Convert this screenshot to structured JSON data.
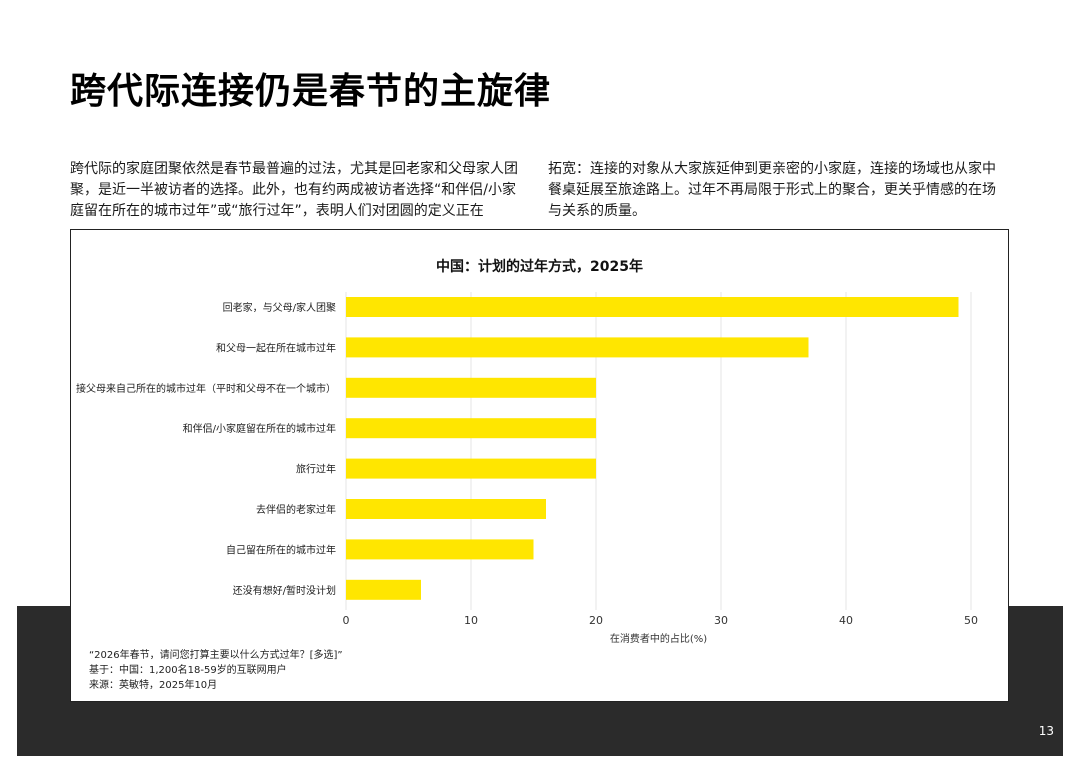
{
  "page": {
    "title": "跨代际连接仍是春节的主旋律",
    "intro_left": "跨代际的家庭团聚依然是春节最普遍的过法，尤其是回老家和父母家人团聚，是近一半被访者的选择。此外，也有约两成被访者选择“和伴侣/小家庭留在所在的城市过年”或“旅行过年”，表明人们对团圆的定义正在",
    "intro_right": "拓宽：连接的对象从大家族延伸到更亲密的小家庭，连接的场域也从家中餐桌延展至旅途路上。过年不再局限于形式上的聚合，更关乎情感的在场与关系的质量。",
    "page_number": "13"
  },
  "chart_data": {
    "type": "bar",
    "orientation": "horizontal",
    "title": "中国：计划的过年方式，2025年",
    "xlabel": "在消费者中的占比(%)",
    "ylabel": "",
    "xlim": [
      0,
      50
    ],
    "xticks": [
      0,
      10,
      20,
      30,
      40,
      50
    ],
    "grid": true,
    "bar_color": "#FFE600",
    "categories": [
      "回老家，与父母/家人团聚",
      "和父母一起在所在城市过年",
      "接父母来自己所在的城市过年（平时和父母不在一个城市）",
      "和伴侣/小家庭留在所在的城市过年",
      "旅行过年",
      "去伴侣的老家过年",
      "自己留在所在的城市过年",
      "还没有想好/暂时没计划"
    ],
    "values": [
      49,
      37,
      20,
      20,
      20,
      16,
      15,
      6
    ]
  },
  "notes": {
    "question": "“2026年春节，请问您打算主要以什么方式过年？[多选]”",
    "base": "基于：中国：1,200名18-59岁的互联网用户",
    "source": "来源：英敏特，2025年10月"
  }
}
